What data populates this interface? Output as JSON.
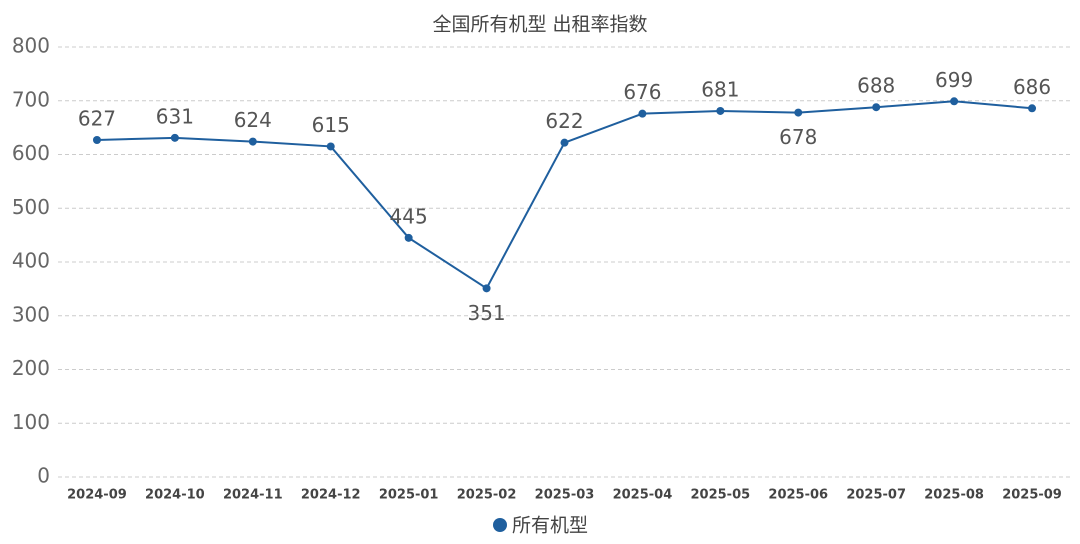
{
  "chart_data": {
    "type": "line",
    "title": "全国所有机型  出租率指数",
    "categories": [
      "2024-09",
      "2024-10",
      "2024-11",
      "2024-12",
      "2025-01",
      "2025-02",
      "2025-03",
      "2025-04",
      "2025-05",
      "2025-06",
      "2025-07",
      "2025-08",
      "2025-09"
    ],
    "series": [
      {
        "name": "所有机型",
        "color": "#1f5f9e",
        "values": [
          627,
          631,
          624,
          615,
          445,
          351,
          622,
          676,
          681,
          678,
          688,
          699,
          686
        ]
      }
    ],
    "ylim": [
      0,
      800
    ],
    "yticks": [
      0,
      100,
      200,
      300,
      400,
      500,
      600,
      700,
      800
    ],
    "grid": true,
    "legend": "bottom"
  }
}
